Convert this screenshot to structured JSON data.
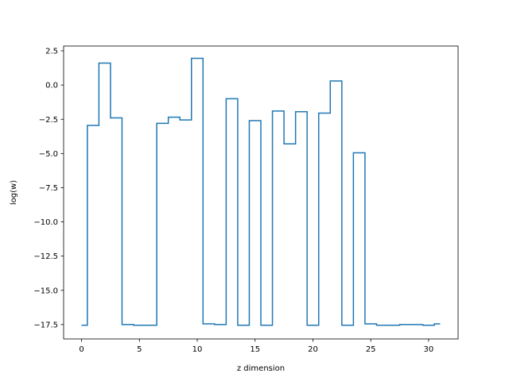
{
  "chart_data": {
    "type": "line",
    "drawstyle": "steps-mid",
    "title": "",
    "xlabel": "z dimension",
    "ylabel": "log(w)",
    "xlim": [
      -1.55,
      32.55
    ],
    "ylim": [
      -18.55,
      2.85
    ],
    "xticks": [
      0,
      5,
      10,
      15,
      20,
      25,
      30
    ],
    "xtick_labels": [
      "0",
      "5",
      "10",
      "15",
      "20",
      "25",
      "30"
    ],
    "yticks": [
      2.5,
      0.0,
      -2.5,
      -5.0,
      -7.5,
      -10.0,
      -12.5,
      -15.0,
      -17.5
    ],
    "ytick_labels": [
      "2.5",
      "0.0",
      "−2.5",
      "−5.0",
      "−7.5",
      "−10.0",
      "−12.5",
      "−15.0",
      "−17.5"
    ],
    "grid": false,
    "legend": "none",
    "line_color": "#1f77b4",
    "series": [
      {
        "x": [
          0,
          1,
          2,
          3,
          4,
          5,
          6,
          7,
          8,
          9,
          10,
          11,
          12,
          13,
          14,
          15,
          16,
          17,
          18,
          19,
          20,
          21,
          22,
          23,
          24,
          25,
          26,
          27,
          28,
          29,
          30,
          31
        ],
        "values": [
          -17.55,
          -2.95,
          1.6,
          -2.4,
          -17.5,
          -17.55,
          -17.55,
          -2.8,
          -2.35,
          -2.55,
          1.95,
          -17.45,
          -17.5,
          -1.0,
          -17.55,
          -2.6,
          -17.55,
          -1.9,
          -4.3,
          -1.95,
          -17.55,
          -2.05,
          0.3,
          -17.55,
          -4.95,
          -17.45,
          -17.55,
          -17.55,
          -17.5,
          -17.5,
          -17.55,
          -17.45
        ]
      }
    ]
  }
}
